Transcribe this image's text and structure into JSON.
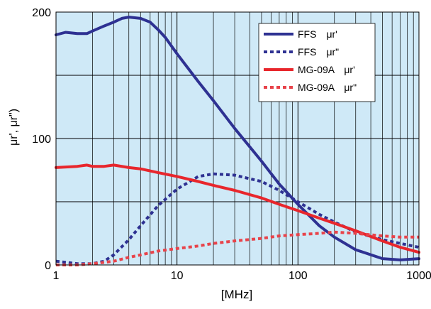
{
  "chart_data": {
    "type": "line",
    "x_scale": "log",
    "xlabel": "[MHz]",
    "ylabel": "μr', μr\")",
    "xlim": [
      1,
      1000
    ],
    "ylim": [
      0,
      200
    ],
    "x_ticks": [
      1,
      10,
      100,
      1000
    ],
    "x_tick_labels": [
      "1",
      "10",
      "100",
      "1000"
    ],
    "y_ticks": [
      0,
      100,
      200
    ],
    "y_tick_labels": [
      "0",
      "100",
      "200"
    ],
    "y_minor_gridlines": [
      50,
      150
    ],
    "grid": true,
    "legend_position": "top-right",
    "colors": {
      "plot_background": "#cfe9f7",
      "grid": "#000000",
      "ffs": "#2e3192",
      "mg09a": "#e8262c",
      "mg09a_dotted": "#e8434a"
    },
    "series": [
      {
        "name": "FFS　μr'",
        "color": "#2e3192",
        "style": "solid",
        "x": [
          1,
          1.2,
          1.5,
          1.8,
          2,
          2.5,
          3,
          3.5,
          4,
          5,
          6,
          7,
          8,
          10,
          15,
          20,
          30,
          50,
          70,
          100,
          150,
          200,
          300,
          500,
          700,
          1000
        ],
        "y": [
          182,
          184,
          183,
          183,
          185,
          189,
          192,
          195,
          196,
          195,
          192,
          186,
          180,
          167,
          145,
          130,
          108,
          82,
          64,
          48,
          31,
          22,
          12,
          5,
          4,
          5
        ]
      },
      {
        "name": "FFS　μr\"",
        "color": "#2e3192",
        "style": "dotted",
        "x": [
          1,
          1.5,
          2,
          2.5,
          3,
          4,
          5,
          7,
          10,
          15,
          20,
          30,
          50,
          70,
          100,
          150,
          200,
          300,
          500,
          700,
          1000
        ],
        "y": [
          3,
          1,
          1,
          3,
          8,
          20,
          31,
          47,
          60,
          70,
          72,
          71,
          66,
          59,
          50,
          40,
          34,
          26,
          20,
          17,
          14
        ]
      },
      {
        "name": "MG-09A　μr'",
        "color": "#e8262c",
        "style": "solid",
        "x": [
          1,
          1.5,
          1.8,
          2,
          2.5,
          3,
          4,
          5,
          7,
          10,
          15,
          20,
          30,
          50,
          70,
          100,
          150,
          200,
          300,
          500,
          700,
          1000
        ],
        "y": [
          77,
          78,
          79,
          78,
          78,
          79,
          77,
          76,
          73,
          70,
          66,
          63,
          59,
          53,
          48,
          43,
          37,
          33,
          27,
          19,
          14,
          10
        ]
      },
      {
        "name": "MG-09A　μr\"",
        "color": "#e8434a",
        "style": "dotted",
        "x": [
          1,
          1.5,
          2,
          2.5,
          3,
          4,
          5,
          7,
          10,
          15,
          20,
          30,
          50,
          70,
          100,
          150,
          200,
          300,
          500,
          700,
          1000
        ],
        "y": [
          0,
          0,
          1,
          2,
          3,
          6,
          8,
          11,
          13,
          15,
          17,
          19,
          21,
          23,
          24,
          25,
          26,
          25,
          23,
          22,
          22
        ]
      }
    ]
  }
}
